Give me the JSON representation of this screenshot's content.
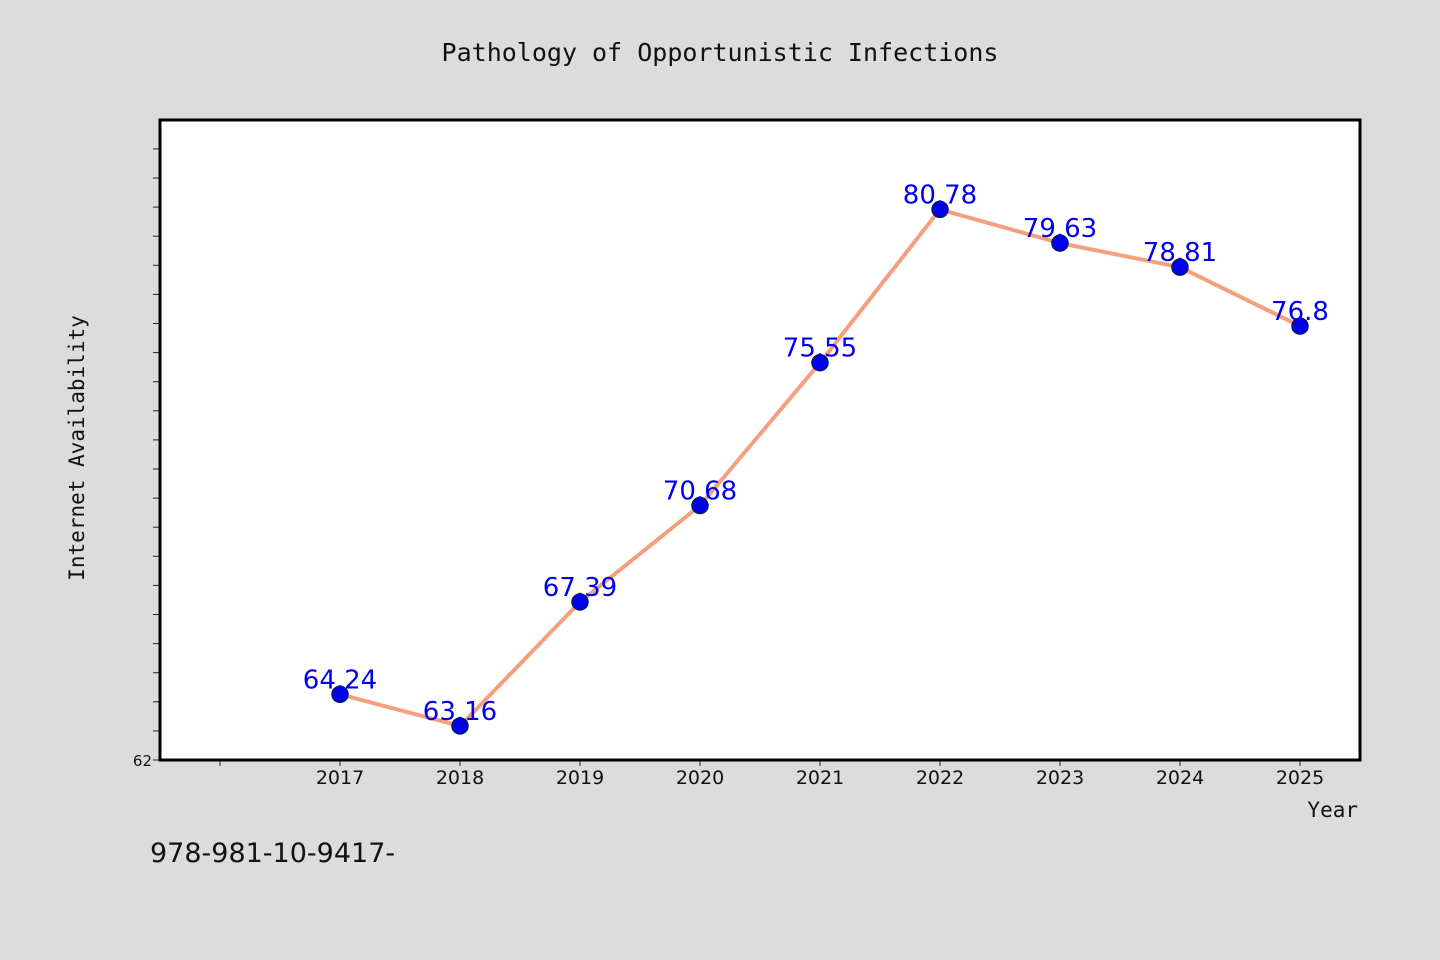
{
  "chart_data": {
    "type": "line",
    "title": "Pathology of Opportunistic Infections",
    "xlabel": "Year",
    "ylabel": "Internet Availability",
    "categories": [
      "2017",
      "2018",
      "2019",
      "2020",
      "2021",
      "2022",
      "2023",
      "2024",
      "2025"
    ],
    "series": [
      {
        "values": [
          64.24,
          63.16,
          67.39,
          70.68,
          75.55,
          80.78,
          79.63,
          78.81,
          76.8
        ],
        "labels": [
          "64.24",
          "63.16",
          "67.39",
          "70.68",
          "75.55",
          "80.78",
          "79.63",
          "78.81",
          "76.8"
        ],
        "line_color": "#f4a07e",
        "marker_color": "#0000ee"
      }
    ],
    "ylim": [
      62,
      84
    ],
    "ytick_labels": [
      "62"
    ],
    "grid": false,
    "legend": "none",
    "label_color": "#0000ee"
  },
  "footer_code": "978-981-10-9417-"
}
